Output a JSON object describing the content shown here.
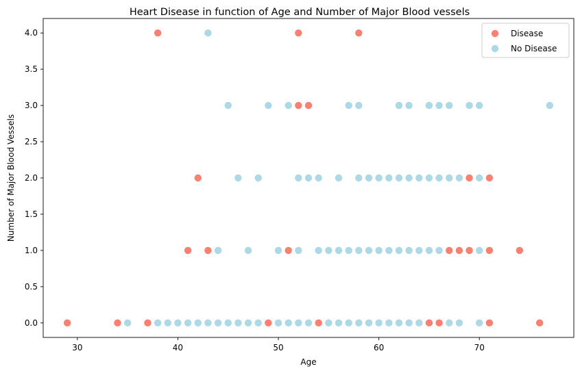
{
  "chart_data": {
    "type": "scatter",
    "title": "Heart Disease in function of Age and Number of Major Blood vessels",
    "xlabel": "Age",
    "ylabel": "Number of Major Blood Vessels",
    "xlim": [
      26.6,
      79.4
    ],
    "ylim": [
      -0.2,
      4.2
    ],
    "xticks": [
      30,
      40,
      50,
      60,
      70
    ],
    "yticks": [
      0.0,
      0.5,
      1.0,
      1.5,
      2.0,
      2.5,
      3.0,
      3.5,
      4.0
    ],
    "xtick_labels": [
      "30",
      "40",
      "50",
      "60",
      "70"
    ],
    "ytick_labels": [
      "0.0",
      "0.5",
      "1.0",
      "1.5",
      "2.0",
      "2.5",
      "3.0",
      "3.5",
      "4.0"
    ],
    "grid": false,
    "legend_position": "top-right",
    "series": [
      {
        "name": "Disease",
        "color": "#fa8072",
        "points": [
          [
            38,
            4
          ],
          [
            52,
            4
          ],
          [
            58,
            4
          ],
          [
            52,
            3
          ],
          [
            53,
            3
          ],
          [
            42,
            2
          ],
          [
            69,
            2
          ],
          [
            71,
            2
          ],
          [
            41,
            1
          ],
          [
            43,
            1
          ],
          [
            51,
            1
          ],
          [
            67,
            1
          ],
          [
            68,
            1
          ],
          [
            69,
            1
          ],
          [
            71,
            1
          ],
          [
            74,
            1
          ],
          [
            29,
            0
          ],
          [
            34,
            0
          ],
          [
            37,
            0
          ],
          [
            49,
            0
          ],
          [
            54,
            0
          ],
          [
            65,
            0
          ],
          [
            66,
            0
          ],
          [
            71,
            0
          ],
          [
            76,
            0
          ]
        ]
      },
      {
        "name": "No Disease",
        "color": "#add8e6",
        "points": [
          [
            43,
            4
          ],
          [
            45,
            3
          ],
          [
            49,
            3
          ],
          [
            51,
            3
          ],
          [
            57,
            3
          ],
          [
            58,
            3
          ],
          [
            62,
            3
          ],
          [
            63,
            3
          ],
          [
            65,
            3
          ],
          [
            66,
            3
          ],
          [
            67,
            3
          ],
          [
            69,
            3
          ],
          [
            70,
            3
          ],
          [
            77,
            3
          ],
          [
            46,
            2
          ],
          [
            48,
            2
          ],
          [
            52,
            2
          ],
          [
            53,
            2
          ],
          [
            54,
            2
          ],
          [
            56,
            2
          ],
          [
            58,
            2
          ],
          [
            59,
            2
          ],
          [
            60,
            2
          ],
          [
            61,
            2
          ],
          [
            62,
            2
          ],
          [
            63,
            2
          ],
          [
            64,
            2
          ],
          [
            65,
            2
          ],
          [
            66,
            2
          ],
          [
            67,
            2
          ],
          [
            68,
            2
          ],
          [
            70,
            2
          ],
          [
            44,
            1
          ],
          [
            47,
            1
          ],
          [
            50,
            1
          ],
          [
            52,
            1
          ],
          [
            54,
            1
          ],
          [
            55,
            1
          ],
          [
            56,
            1
          ],
          [
            57,
            1
          ],
          [
            58,
            1
          ],
          [
            59,
            1
          ],
          [
            60,
            1
          ],
          [
            61,
            1
          ],
          [
            62,
            1
          ],
          [
            63,
            1
          ],
          [
            64,
            1
          ],
          [
            65,
            1
          ],
          [
            66,
            1
          ],
          [
            70,
            1
          ],
          [
            35,
            0
          ],
          [
            38,
            0
          ],
          [
            39,
            0
          ],
          [
            40,
            0
          ],
          [
            41,
            0
          ],
          [
            42,
            0
          ],
          [
            43,
            0
          ],
          [
            44,
            0
          ],
          [
            45,
            0
          ],
          [
            46,
            0
          ],
          [
            47,
            0
          ],
          [
            48,
            0
          ],
          [
            50,
            0
          ],
          [
            51,
            0
          ],
          [
            52,
            0
          ],
          [
            53,
            0
          ],
          [
            55,
            0
          ],
          [
            56,
            0
          ],
          [
            57,
            0
          ],
          [
            58,
            0
          ],
          [
            59,
            0
          ],
          [
            60,
            0
          ],
          [
            61,
            0
          ],
          [
            62,
            0
          ],
          [
            63,
            0
          ],
          [
            64,
            0
          ],
          [
            67,
            0
          ],
          [
            68,
            0
          ],
          [
            70,
            0
          ]
        ]
      }
    ]
  }
}
